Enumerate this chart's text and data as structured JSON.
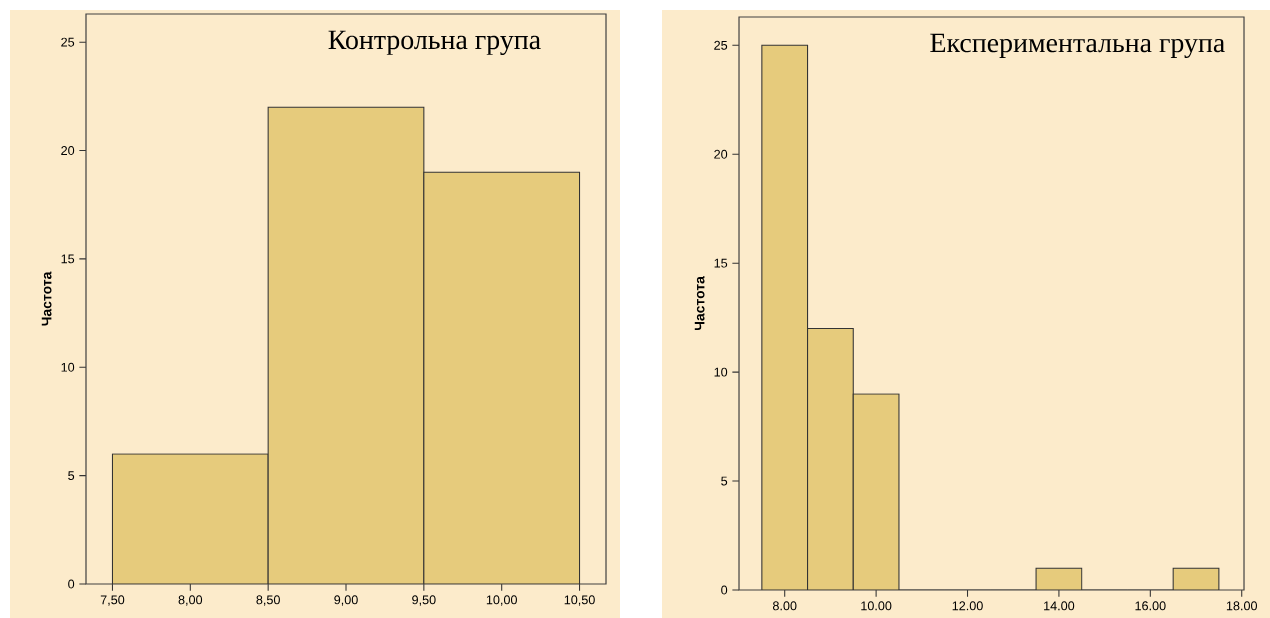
{
  "chart_data": [
    {
      "type": "histogram",
      "title": "Контрольна група",
      "ylabel": "Частота",
      "bins": [
        7.5,
        8.5,
        9.5,
        10.5
      ],
      "values": [
        6,
        22,
        19
      ],
      "color": "#e6cb7c",
      "xlim": [
        7.33,
        10.67
      ],
      "ylim": [
        0,
        26.3
      ],
      "xticks": [
        {
          "value": 7.5,
          "label": "7,50"
        },
        {
          "value": 8,
          "label": "8,00"
        },
        {
          "value": 8.5,
          "label": "8,50"
        },
        {
          "value": 9,
          "label": "9,00"
        },
        {
          "value": 9.5,
          "label": "9,50"
        },
        {
          "value": 10,
          "label": "10,00"
        },
        {
          "value": 10.5,
          "label": "10,50"
        }
      ],
      "yticks": [
        0,
        5,
        10,
        15,
        20,
        25
      ],
      "grid": false,
      "legend": false
    },
    {
      "type": "histogram",
      "title": "Експериментальна група",
      "ylabel": "Частота",
      "bins": [
        7.5,
        8.5,
        9.5,
        10.5,
        11.5,
        12.5,
        13.5,
        14.5,
        15.5,
        16.5,
        17.5
      ],
      "values": [
        25,
        12,
        9,
        0,
        0,
        0,
        1,
        0,
        0,
        1
      ],
      "color": "#e6cb7c",
      "xlim": [
        7.0,
        18.05
      ],
      "ylim": [
        0,
        26.3
      ],
      "xticks": [
        {
          "value": 8,
          "label": "8.00"
        },
        {
          "value": 10,
          "label": "10.00"
        },
        {
          "value": 12,
          "label": "12.00"
        },
        {
          "value": 14,
          "label": "14.00"
        },
        {
          "value": 16,
          "label": "16.00"
        },
        {
          "value": 18,
          "label": "18.00"
        }
      ],
      "yticks": [
        0,
        5,
        10,
        15,
        20,
        25
      ],
      "grid": false,
      "legend": false
    }
  ]
}
